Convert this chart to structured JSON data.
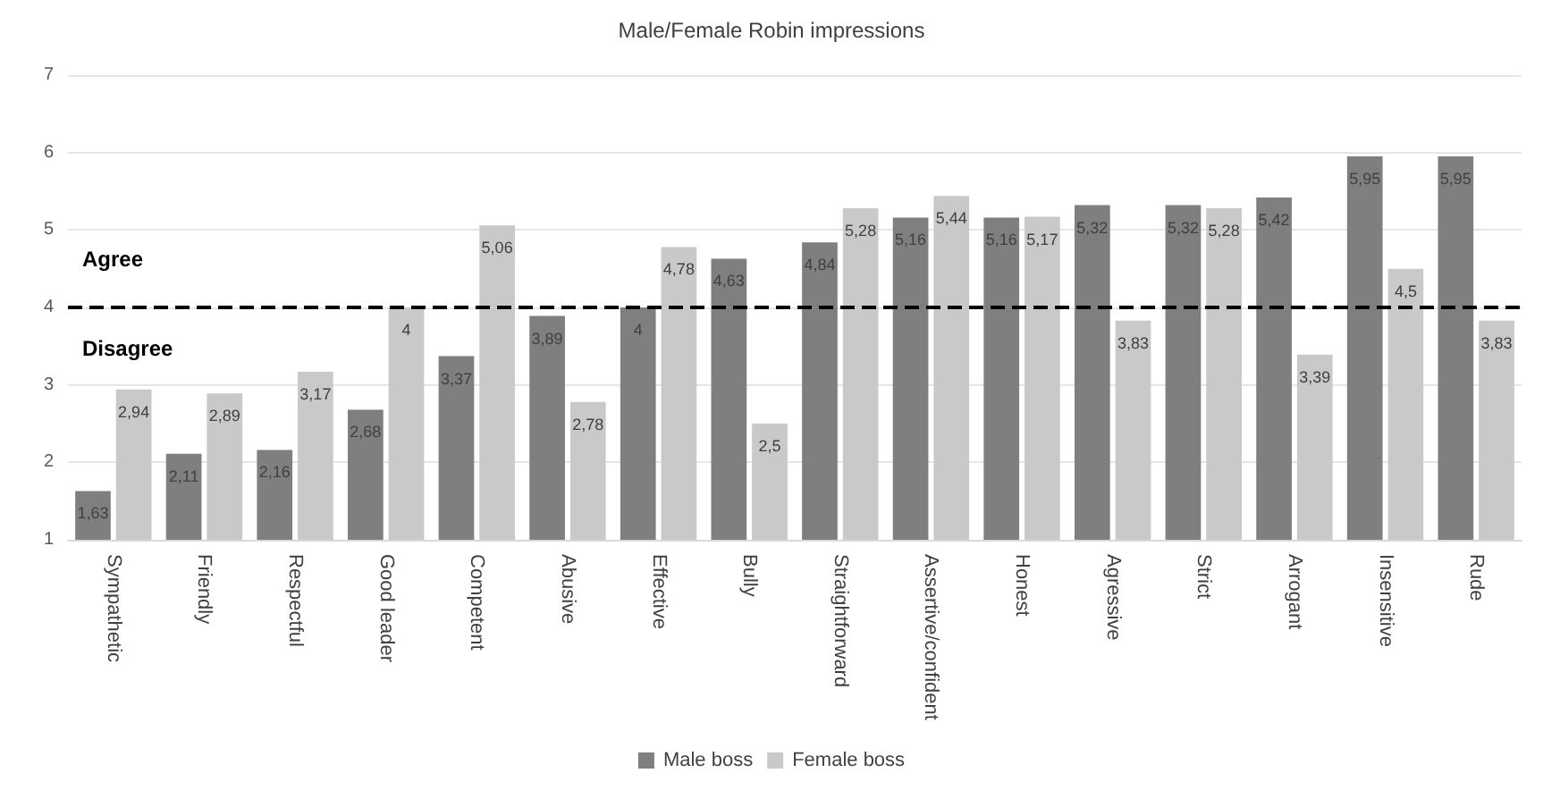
{
  "chart_data": {
    "type": "bar",
    "title": "Male/Female Robin impressions",
    "categories": [
      "Sympathetic",
      "Friendly",
      "Respectful",
      "Good leader",
      "Competent",
      "Abusive",
      "Effective",
      "Bully",
      "Straightforward",
      "Assertive/confident",
      "Honest",
      "Agressive",
      "Strict",
      "Arrogant",
      "Insensitive",
      "Rude"
    ],
    "series": [
      {
        "name": "Male boss",
        "color": "#7f7f7f",
        "values": [
          1.63,
          2.11,
          2.16,
          2.68,
          3.37,
          3.89,
          4,
          4.63,
          4.84,
          5.16,
          5.16,
          5.32,
          5.32,
          5.42,
          5.95,
          5.95
        ],
        "value_labels": [
          "1,63",
          "2,11",
          "2,16",
          "2,68",
          "3,37",
          "3,89",
          "4",
          "4,63",
          "4,84",
          "5,16",
          "5,16",
          "5,32",
          "5,32",
          "5,42",
          "5,95",
          "5,95"
        ]
      },
      {
        "name": "Female boss",
        "color": "#c9c9c9",
        "values": [
          2.94,
          2.89,
          3.17,
          4,
          5.06,
          2.78,
          4.78,
          2.5,
          5.28,
          5.44,
          5.17,
          3.83,
          5.28,
          3.39,
          4.5,
          3.83
        ],
        "value_labels": [
          "2,94",
          "2,89",
          "3,17",
          "4",
          "5,06",
          "2,78",
          "4,78",
          "2,5",
          "5,28",
          "5,44",
          "5,17",
          "3,83",
          "5,28",
          "3,39",
          "4,5",
          "3,83"
        ]
      }
    ],
    "ylim": [
      1,
      7
    ],
    "yticks": [
      1,
      2,
      3,
      4,
      5,
      6,
      7
    ],
    "grid": "y",
    "legend": "bottom",
    "ref_lines": [
      {
        "axis": "y",
        "value": 4,
        "color": "#000000",
        "line_style": "dashed"
      }
    ],
    "annotations": [
      "Agree",
      "Disagree"
    ]
  }
}
